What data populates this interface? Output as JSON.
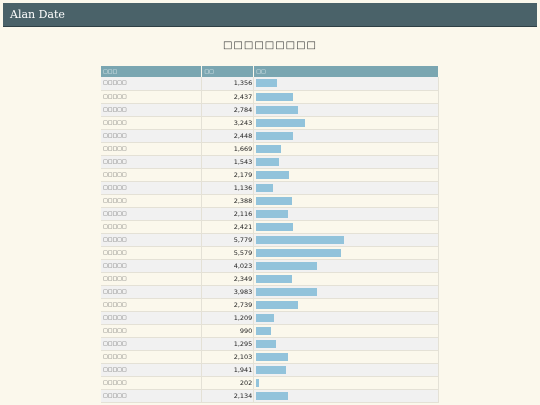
{
  "app": {
    "title": "Alan Date"
  },
  "page": {
    "title": "□□□□□□□□□"
  },
  "table": {
    "columns": [
      "□□□",
      "□□",
      "□□"
    ],
    "max_value": 5779,
    "rows": [
      {
        "name": "□□□□□",
        "value": "1,356",
        "amount": 1356
      },
      {
        "name": "□□□□□",
        "value": "2,437",
        "amount": 2437
      },
      {
        "name": "□□□□□",
        "value": "2,784",
        "amount": 2784
      },
      {
        "name": "□□□□□",
        "value": "3,243",
        "amount": 3243
      },
      {
        "name": "□□□□□",
        "value": "2,448",
        "amount": 2448
      },
      {
        "name": "□□□□□",
        "value": "1,669",
        "amount": 1669
      },
      {
        "name": "□□□□□",
        "value": "1,543",
        "amount": 1543
      },
      {
        "name": "□□□□□",
        "value": "2,179",
        "amount": 2179
      },
      {
        "name": "□□□□□",
        "value": "1,136",
        "amount": 1136
      },
      {
        "name": "□□□□□",
        "value": "2,388",
        "amount": 2388
      },
      {
        "name": "□□□□□",
        "value": "2,116",
        "amount": 2116
      },
      {
        "name": "□□□□□",
        "value": "2,421",
        "amount": 2421
      },
      {
        "name": "□□□□□",
        "value": "5,779",
        "amount": 5779
      },
      {
        "name": "□□□□□",
        "value": "5,579",
        "amount": 5579
      },
      {
        "name": "□□□□□",
        "value": "4,023",
        "amount": 4023
      },
      {
        "name": "□□□□□",
        "value": "2,349",
        "amount": 2349
      },
      {
        "name": "□□□□□",
        "value": "3,983",
        "amount": 3983
      },
      {
        "name": "□□□□□",
        "value": "2,739",
        "amount": 2739
      },
      {
        "name": "□□□□□",
        "value": "1,209",
        "amount": 1209
      },
      {
        "name": "□□□□□",
        "value": "990",
        "amount": 990
      },
      {
        "name": "□□□□□",
        "value": "1,295",
        "amount": 1295
      },
      {
        "name": "□□□□□",
        "value": "2,103",
        "amount": 2103
      },
      {
        "name": "□□□□□",
        "value": "1,941",
        "amount": 1941
      },
      {
        "name": "□□□□□",
        "value": "202",
        "amount": 202
      },
      {
        "name": "□□□□□",
        "value": "2,134",
        "amount": 2134
      }
    ]
  },
  "colors": {
    "header_bar": "#4a6269",
    "table_header": "#7aa6b1",
    "bar_fill": "#92c3db",
    "background": "#fbf8ec"
  }
}
